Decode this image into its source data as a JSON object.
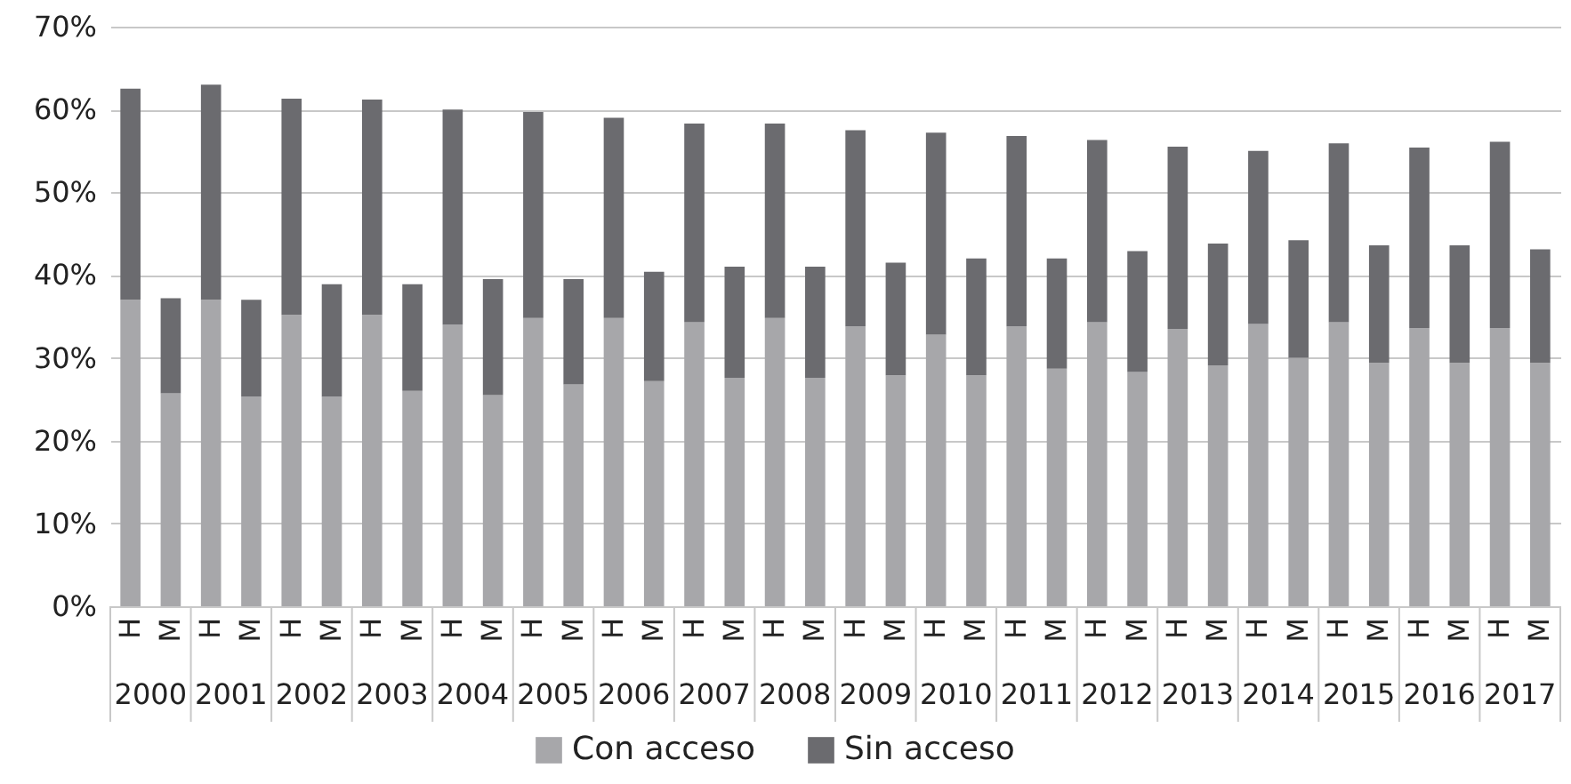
{
  "chart_data": {
    "type": "bar",
    "stacked": true,
    "categories": [
      "H",
      "M",
      "H",
      "M",
      "H",
      "M",
      "H",
      "M",
      "H",
      "M",
      "H",
      "M",
      "H",
      "M",
      "H",
      "M",
      "H",
      "M",
      "H",
      "M",
      "H",
      "M",
      "H",
      "M",
      "H",
      "M",
      "H",
      "M",
      "H",
      "M",
      "H",
      "M",
      "H",
      "M",
      "H",
      "M"
    ],
    "annotations": [
      "2000",
      "2001",
      "2002",
      "2003",
      "2004",
      "2005",
      "2006",
      "2007",
      "2008",
      "2009",
      "2010",
      "2011",
      "2012",
      "2013",
      "2014",
      "2015",
      "2016",
      "2017"
    ],
    "series": [
      {
        "name": "Con acceso",
        "color": "#a7a7aa",
        "values": [
          37,
          25.7,
          37,
          25.3,
          35.2,
          25.3,
          35.2,
          26,
          34,
          25.5,
          34.8,
          26.8,
          34.8,
          27.2,
          34.3,
          27.6,
          34.8,
          27.6,
          33.8,
          27.9,
          32.8,
          27.9,
          33.8,
          28.7,
          34.3,
          28.3,
          33.5,
          29.1,
          34.1,
          30,
          34.3,
          29.4,
          33.6,
          29.4,
          33.6,
          29.4
        ]
      },
      {
        "name": "Sin acceso",
        "color": "#6b6b6f",
        "values": [
          25.5,
          11.5,
          26,
          11.7,
          26.1,
          13.6,
          26,
          12.9,
          26,
          14,
          24.9,
          12.7,
          24.2,
          13.2,
          24,
          13.4,
          23.5,
          13.4,
          23.7,
          13.6,
          24.4,
          14.1,
          23,
          13.3,
          22,
          14.6,
          22,
          14.7,
          20.9,
          14.2,
          21.6,
          14.2,
          21.8,
          14.2,
          22.5,
          13.7
        ]
      }
    ],
    "ylim": [
      0,
      70
    ],
    "yticks": [
      {
        "value": 0,
        "label": "0%"
      },
      {
        "value": 10,
        "label": "10%"
      },
      {
        "value": 20,
        "label": "20%"
      },
      {
        "value": 30,
        "label": "30%"
      },
      {
        "value": 40,
        "label": "40%"
      },
      {
        "value": 50,
        "label": "50%"
      },
      {
        "value": 60,
        "label": "60%"
      },
      {
        "value": 70,
        "label": "70%"
      }
    ],
    "grid": "y",
    "legend": "bottom"
  }
}
